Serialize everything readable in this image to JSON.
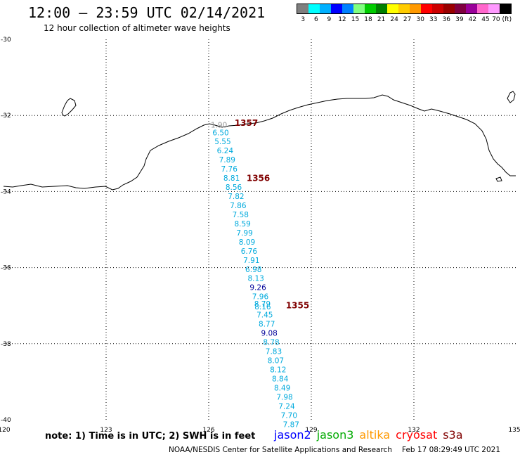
{
  "header": {
    "title": "12:00 — 23:59 UTC 02/14/2021",
    "subtitle": "12 hour collection of altimeter wave heights"
  },
  "legend": {
    "colors": [
      "#7f7f7f",
      "#00ffff",
      "#00b0ff",
      "#0000ff",
      "#0080ff",
      "#80ff80",
      "#00cc00",
      "#008000",
      "#ffff00",
      "#ffcc00",
      "#ff9900",
      "#ff0000",
      "#cc0000",
      "#990000",
      "#800040",
      "#990099",
      "#ff66cc",
      "#ff99ff",
      "#000000"
    ],
    "labels": [
      "3",
      "6",
      "9",
      "12",
      "15",
      "18",
      "21",
      "24",
      "27",
      "30",
      "33",
      "36",
      "39",
      "42",
      "45",
      "70 (ft)"
    ]
  },
  "map": {
    "lon_range": [
      120,
      135
    ],
    "lat_range": [
      -40,
      -30
    ],
    "lon_ticks": [
      "120",
      "123",
      "126",
      "129",
      "132",
      "135"
    ],
    "lat_ticks": [
      "-30",
      "-32",
      "-34",
      "-36",
      "-38",
      "-40"
    ],
    "track_color": "#00aadd",
    "track_dark_color": "#000099",
    "pass_color": "#800000",
    "readings": [
      {
        "lat": -32.25,
        "lon": 126.3,
        "v": "1.90",
        "c": "#999999"
      },
      {
        "lat": -32.45,
        "lon": 126.35,
        "v": "6.50",
        "c": "#00aadd"
      },
      {
        "lat": -32.68,
        "lon": 126.41,
        "v": "5.55",
        "c": "#00aadd"
      },
      {
        "lat": -32.92,
        "lon": 126.48,
        "v": "6.24",
        "c": "#00aadd"
      },
      {
        "lat": -33.16,
        "lon": 126.54,
        "v": "7.89",
        "c": "#00aadd"
      },
      {
        "lat": -33.4,
        "lon": 126.6,
        "v": "7.76",
        "c": "#00aadd"
      },
      {
        "lat": -33.64,
        "lon": 126.67,
        "v": "8.81",
        "c": "#00aadd"
      },
      {
        "lat": -33.88,
        "lon": 126.73,
        "v": "8.56",
        "c": "#00aadd"
      },
      {
        "lat": -34.12,
        "lon": 126.8,
        "v": "7.82",
        "c": "#00aadd"
      },
      {
        "lat": -34.36,
        "lon": 126.86,
        "v": "7.86",
        "c": "#00aadd"
      },
      {
        "lat": -34.6,
        "lon": 126.93,
        "v": "7.58",
        "c": "#00aadd"
      },
      {
        "lat": -34.84,
        "lon": 126.99,
        "v": "8.59",
        "c": "#00aadd"
      },
      {
        "lat": -35.08,
        "lon": 127.05,
        "v": "7.99",
        "c": "#00aadd"
      },
      {
        "lat": -35.32,
        "lon": 127.12,
        "v": "8.09",
        "c": "#00aadd"
      },
      {
        "lat": -35.56,
        "lon": 127.18,
        "v": "6.76",
        "c": "#00aadd"
      },
      {
        "lat": -35.8,
        "lon": 127.25,
        "v": "7.91",
        "c": "#00aadd"
      },
      {
        "lat": -36.04,
        "lon": 127.31,
        "v": "6.98",
        "c": "#00aadd"
      },
      {
        "lat": -36.28,
        "lon": 127.38,
        "v": "8.13",
        "c": "#00aadd"
      },
      {
        "lat": -36.52,
        "lon": 127.44,
        "v": "9.26",
        "c": "#000099"
      },
      {
        "lat": -36.76,
        "lon": 127.51,
        "v": "7.96",
        "c": "#00aadd"
      },
      {
        "lat": -36.95,
        "lon": 127.57,
        "v": "8.79",
        "c": "#00aadd"
      },
      {
        "lat": -37.02,
        "lon": 127.58,
        "v": "8.16",
        "c": "#00aadd"
      },
      {
        "lat": -37.24,
        "lon": 127.64,
        "v": "7.45",
        "c": "#00aadd"
      },
      {
        "lat": -37.48,
        "lon": 127.7,
        "v": "8.77",
        "c": "#00aadd"
      },
      {
        "lat": -37.72,
        "lon": 127.77,
        "v": "9.08",
        "c": "#000099"
      },
      {
        "lat": -37.96,
        "lon": 127.83,
        "v": "8.78",
        "c": "#00aadd"
      },
      {
        "lat": -38.2,
        "lon": 127.9,
        "v": "7.83",
        "c": "#00aadd"
      },
      {
        "lat": -38.44,
        "lon": 127.96,
        "v": "8.07",
        "c": "#00aadd"
      },
      {
        "lat": -38.68,
        "lon": 128.03,
        "v": "8.12",
        "c": "#00aadd"
      },
      {
        "lat": -38.92,
        "lon": 128.09,
        "v": "8.84",
        "c": "#00aadd"
      },
      {
        "lat": -39.16,
        "lon": 128.15,
        "v": "8.49",
        "c": "#00aadd"
      },
      {
        "lat": -39.4,
        "lon": 128.22,
        "v": "7.98",
        "c": "#00aadd"
      },
      {
        "lat": -39.64,
        "lon": 128.28,
        "v": "7.24",
        "c": "#00aadd"
      },
      {
        "lat": -39.88,
        "lon": 128.35,
        "v": "7.70",
        "c": "#00aadd"
      },
      {
        "lat": -40.12,
        "lon": 128.41,
        "v": "7.87",
        "c": "#00aadd"
      }
    ],
    "passes": [
      {
        "lat": -32.2,
        "lon": 127.1,
        "label": "1357"
      },
      {
        "lat": -33.65,
        "lon": 127.45,
        "label": "1356"
      },
      {
        "lat": -37.0,
        "lon": 128.6,
        "label": "1355"
      }
    ]
  },
  "note": "note:  1) Time is in UTC;  2) SWH is in feet",
  "satellites": [
    {
      "name": "jason2",
      "color": "#0000ff"
    },
    {
      "name": "jason3",
      "color": "#00aa00"
    },
    {
      "name": "altika",
      "color": "#ff9900"
    },
    {
      "name": "cryosat",
      "color": "#ff0000"
    },
    {
      "name": "s3a",
      "color": "#800000"
    }
  ],
  "footer": {
    "org": "NOAA/NESDIS Center for Satellite Applications and Research",
    "timestamp": "Feb 17 08:29:49 UTC 2021"
  }
}
